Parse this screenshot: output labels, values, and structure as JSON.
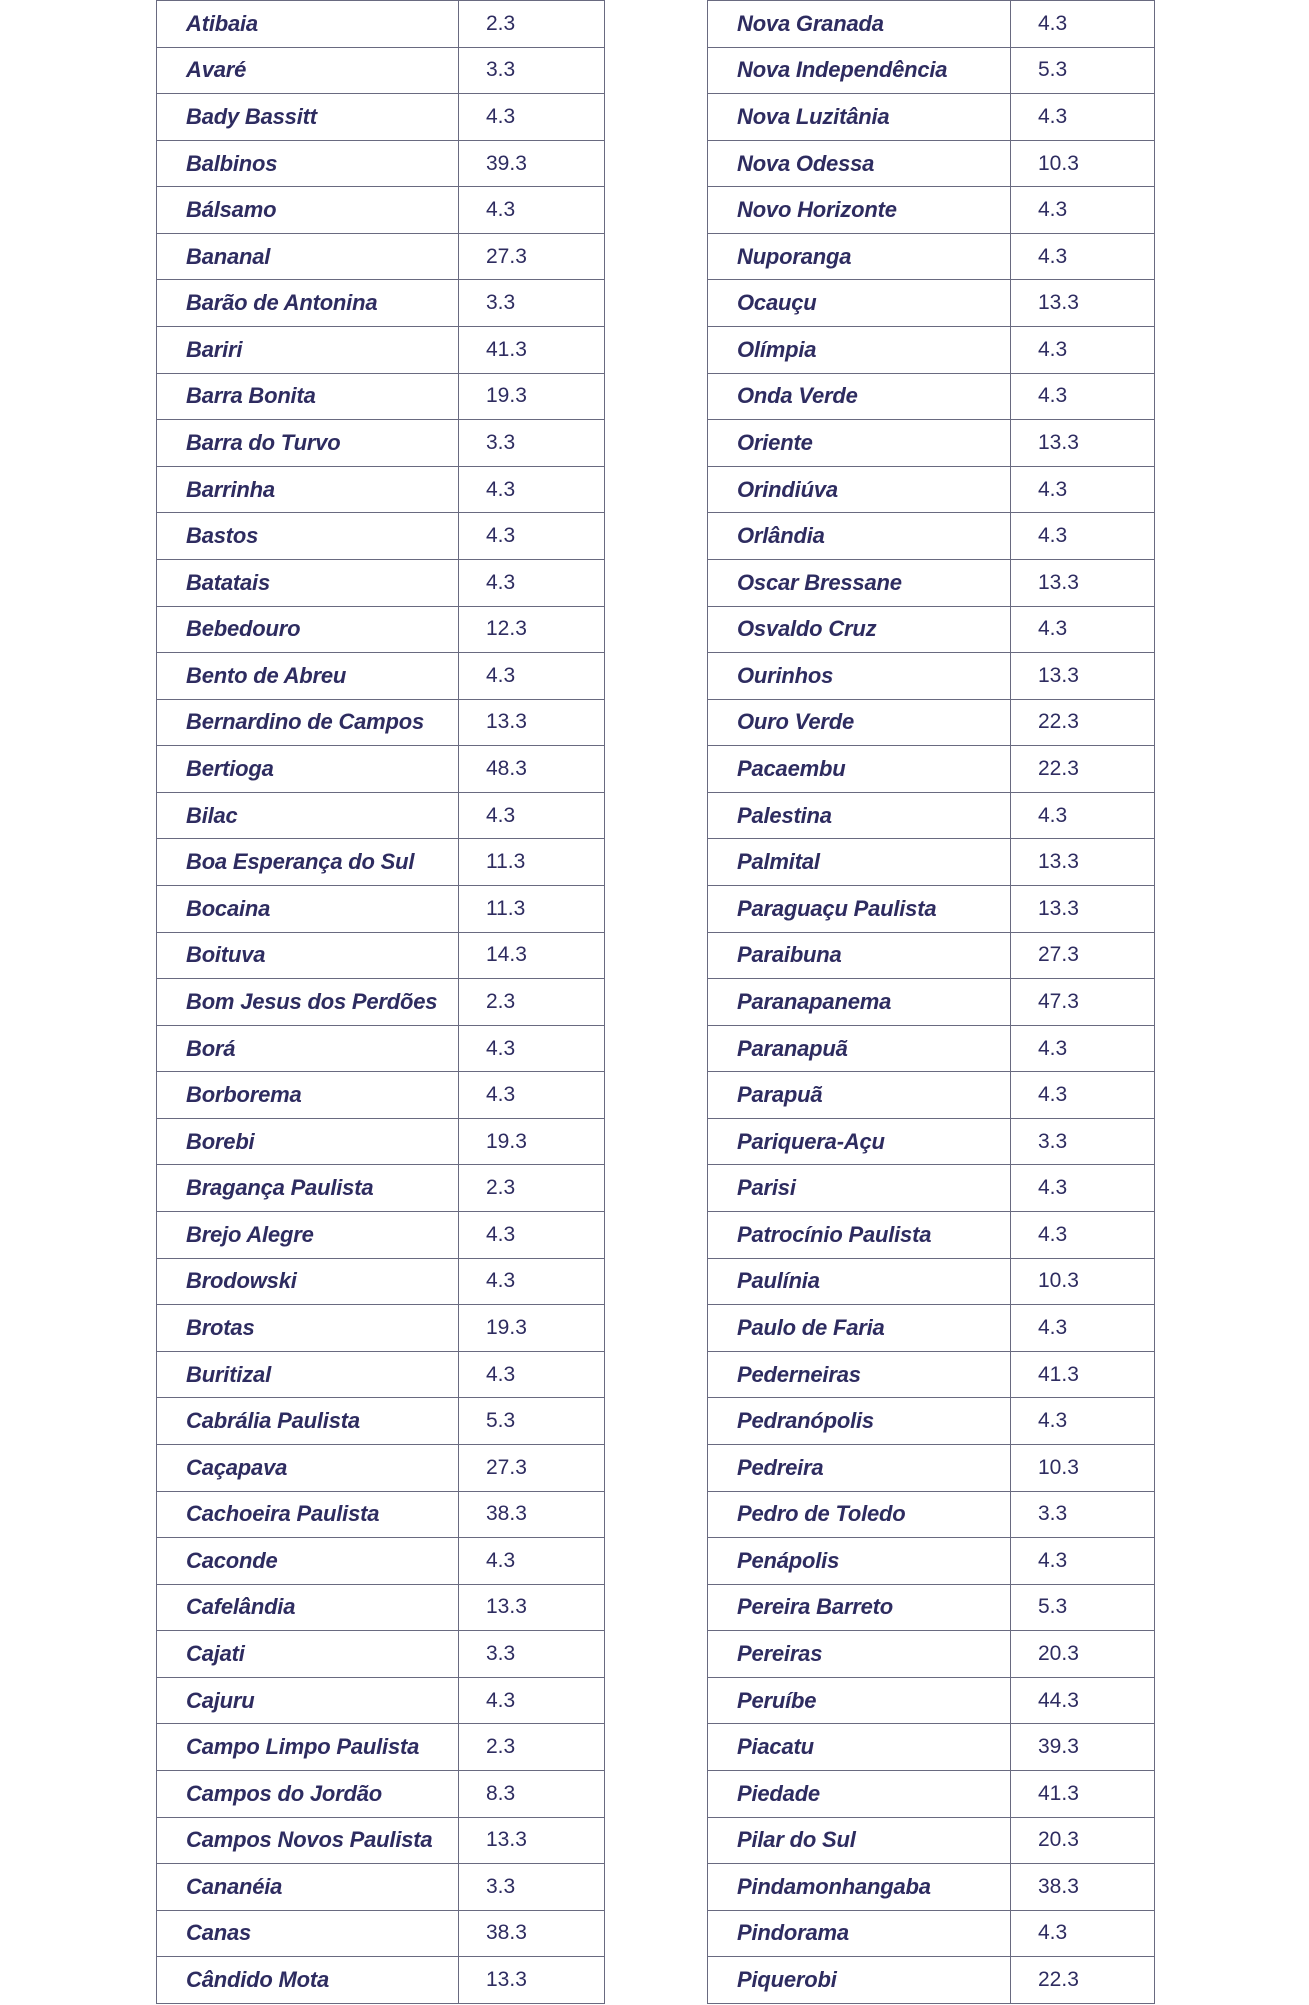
{
  "style": {
    "text_color": "#2e2c60",
    "border_color": "#696a80",
    "background_color": "#ffffff"
  },
  "tables": [
    {
      "id": "table-left",
      "name": "municipality-table-left",
      "rows": [
        {
          "city": "Atibaia",
          "value": "2.3"
        },
        {
          "city": "Avaré",
          "value": "3.3"
        },
        {
          "city": "Bady Bassitt",
          "value": "4.3"
        },
        {
          "city": "Balbinos",
          "value": "39.3"
        },
        {
          "city": "Bálsamo",
          "value": "4.3"
        },
        {
          "city": "Bananal",
          "value": "27.3"
        },
        {
          "city": "Barão de Antonina",
          "value": "3.3"
        },
        {
          "city": "Bariri",
          "value": "41.3"
        },
        {
          "city": "Barra Bonita",
          "value": "19.3"
        },
        {
          "city": "Barra do Turvo",
          "value": "3.3"
        },
        {
          "city": "Barrinha",
          "value": "4.3"
        },
        {
          "city": "Bastos",
          "value": "4.3"
        },
        {
          "city": "Batatais",
          "value": "4.3"
        },
        {
          "city": "Bebedouro",
          "value": "12.3"
        },
        {
          "city": "Bento de Abreu",
          "value": "4.3"
        },
        {
          "city": "Bernardino de Campos",
          "value": "13.3"
        },
        {
          "city": "Bertioga",
          "value": "48.3"
        },
        {
          "city": "Bilac",
          "value": "4.3"
        },
        {
          "city": "Boa Esperança do Sul",
          "value": "11.3"
        },
        {
          "city": "Bocaina",
          "value": "11.3"
        },
        {
          "city": "Boituva",
          "value": "14.3"
        },
        {
          "city": "Bom Jesus dos Perdões",
          "value": "2.3"
        },
        {
          "city": "Borá",
          "value": "4.3"
        },
        {
          "city": "Borborema",
          "value": "4.3"
        },
        {
          "city": "Borebi",
          "value": "19.3"
        },
        {
          "city": "Bragança Paulista",
          "value": "2.3"
        },
        {
          "city": "Brejo Alegre",
          "value": "4.3"
        },
        {
          "city": "Brodowski",
          "value": "4.3"
        },
        {
          "city": "Brotas",
          "value": "19.3"
        },
        {
          "city": "Buritizal",
          "value": "4.3"
        },
        {
          "city": "Cabrália Paulista",
          "value": "5.3"
        },
        {
          "city": "Caçapava",
          "value": "27.3"
        },
        {
          "city": "Cachoeira Paulista",
          "value": "38.3"
        },
        {
          "city": "Caconde",
          "value": "4.3"
        },
        {
          "city": "Cafelândia",
          "value": "13.3"
        },
        {
          "city": "Cajati",
          "value": "3.3"
        },
        {
          "city": "Cajuru",
          "value": "4.3"
        },
        {
          "city": "Campo Limpo Paulista",
          "value": "2.3"
        },
        {
          "city": "Campos do Jordão",
          "value": "8.3"
        },
        {
          "city": "Campos Novos Paulista",
          "value": "13.3"
        },
        {
          "city": "Cananéia",
          "value": "3.3"
        },
        {
          "city": "Canas",
          "value": "38.3"
        },
        {
          "city": "Cândido Mota",
          "value": "13.3"
        }
      ]
    },
    {
      "id": "table-right",
      "name": "municipality-table-right",
      "rows": [
        {
          "city": "Nova Granada",
          "value": "4.3"
        },
        {
          "city": "Nova Independência",
          "value": "5.3"
        },
        {
          "city": "Nova Luzitânia",
          "value": "4.3"
        },
        {
          "city": "Nova Odessa",
          "value": "10.3"
        },
        {
          "city": "Novo Horizonte",
          "value": "4.3"
        },
        {
          "city": "Nuporanga",
          "value": "4.3"
        },
        {
          "city": "Ocauçu",
          "value": "13.3"
        },
        {
          "city": "Olímpia",
          "value": "4.3"
        },
        {
          "city": "Onda Verde",
          "value": "4.3"
        },
        {
          "city": "Oriente",
          "value": "13.3"
        },
        {
          "city": "Orindiúva",
          "value": "4.3"
        },
        {
          "city": "Orlândia",
          "value": "4.3"
        },
        {
          "city": "Oscar Bressane",
          "value": "13.3"
        },
        {
          "city": "Osvaldo Cruz",
          "value": "4.3"
        },
        {
          "city": "Ourinhos",
          "value": "13.3"
        },
        {
          "city": "Ouro Verde",
          "value": "22.3"
        },
        {
          "city": "Pacaembu",
          "value": "22.3"
        },
        {
          "city": "Palestina",
          "value": "4.3"
        },
        {
          "city": "Palmital",
          "value": "13.3"
        },
        {
          "city": "Paraguaçu Paulista",
          "value": "13.3"
        },
        {
          "city": "Paraibuna",
          "value": "27.3"
        },
        {
          "city": "Paranapanema",
          "value": "47.3"
        },
        {
          "city": "Paranapuã",
          "value": "4.3"
        },
        {
          "city": "Parapuã",
          "value": "4.3"
        },
        {
          "city": "Pariquera-Açu",
          "value": "3.3"
        },
        {
          "city": "Parisi",
          "value": "4.3"
        },
        {
          "city": "Patrocínio Paulista",
          "value": "4.3"
        },
        {
          "city": "Paulínia",
          "value": "10.3"
        },
        {
          "city": "Paulo de Faria",
          "value": "4.3"
        },
        {
          "city": "Pederneiras",
          "value": "41.3"
        },
        {
          "city": "Pedranópolis",
          "value": "4.3"
        },
        {
          "city": "Pedreira",
          "value": "10.3"
        },
        {
          "city": "Pedro de Toledo",
          "value": "3.3"
        },
        {
          "city": "Penápolis",
          "value": "4.3"
        },
        {
          "city": "Pereira Barreto",
          "value": "5.3"
        },
        {
          "city": "Pereiras",
          "value": "20.3"
        },
        {
          "city": "Peruíbe",
          "value": "44.3"
        },
        {
          "city": "Piacatu",
          "value": "39.3"
        },
        {
          "city": "Piedade",
          "value": "41.3"
        },
        {
          "city": "Pilar do Sul",
          "value": "20.3"
        },
        {
          "city": "Pindamonhangaba",
          "value": "38.3"
        },
        {
          "city": "Pindorama",
          "value": "4.3"
        },
        {
          "city": "Piquerobi",
          "value": "22.3"
        }
      ]
    }
  ]
}
